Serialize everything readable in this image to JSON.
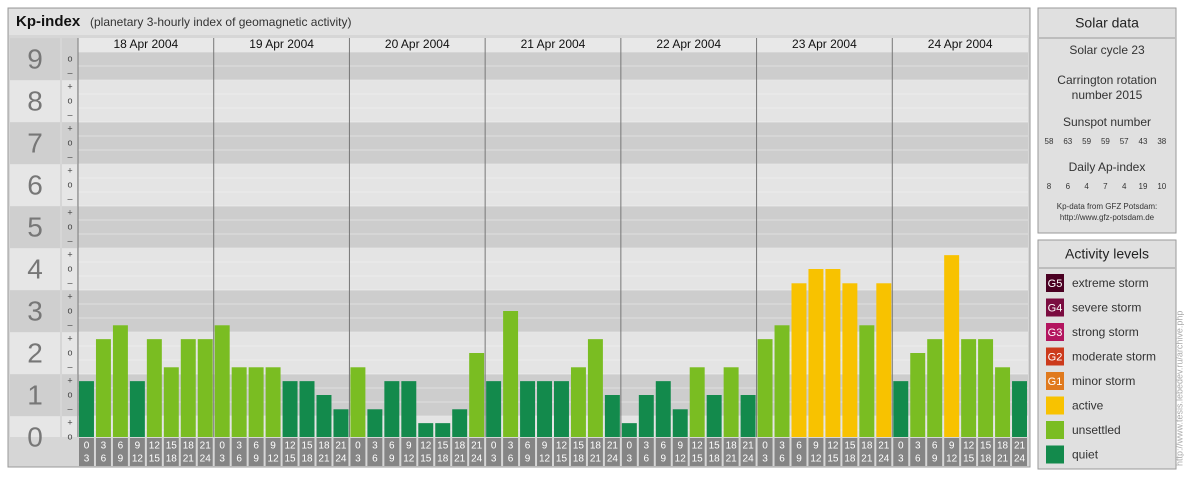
{
  "chart_data": {
    "type": "bar",
    "title": "Kp-index",
    "subtitle": "(planetary 3-hourly index of geomagnetic activity)",
    "categories": [
      "18 Apr 2004",
      "19 Apr 2004",
      "20 Apr 2004",
      "21 Apr 2004",
      "22 Apr 2004",
      "23 Apr 2004",
      "24 Apr 2004"
    ],
    "hours": [
      [
        0,
        3
      ],
      [
        3,
        6
      ],
      [
        6,
        9
      ],
      [
        9,
        12
      ],
      [
        12,
        15
      ],
      [
        15,
        18
      ],
      [
        18,
        21
      ],
      [
        21,
        24
      ]
    ],
    "values": [
      [
        1,
        2,
        2.33,
        1,
        2,
        1.33,
        2,
        2
      ],
      [
        2.33,
        1.33,
        1.33,
        1.33,
        1,
        1,
        0.67,
        0.33
      ],
      [
        1.33,
        0.33,
        1,
        1,
        0,
        0,
        0.33,
        1.67
      ],
      [
        1,
        2.67,
        1,
        1,
        1,
        1.33,
        2,
        0.67
      ],
      [
        0,
        0.67,
        1,
        0.33,
        1.33,
        0.67,
        1.33,
        0.67
      ],
      [
        2,
        2.33,
        3.33,
        3.67,
        3.67,
        3.33,
        2.33,
        3.33
      ],
      [
        1,
        1.67,
        2,
        4,
        2,
        2,
        1.33,
        1
      ]
    ],
    "colors": [
      [
        "#138a4c",
        "#7abd22",
        "#7abd22",
        "#138a4c",
        "#7abd22",
        "#7abd22",
        "#7abd22",
        "#7abd22"
      ],
      [
        "#7abd22",
        "#7abd22",
        "#7abd22",
        "#7abd22",
        "#138a4c",
        "#138a4c",
        "#138a4c",
        "#138a4c"
      ],
      [
        "#7abd22",
        "#138a4c",
        "#138a4c",
        "#138a4c",
        "#138a4c",
        "#138a4c",
        "#138a4c",
        "#7abd22"
      ],
      [
        "#138a4c",
        "#7abd22",
        "#138a4c",
        "#138a4c",
        "#138a4c",
        "#7abd22",
        "#7abd22",
        "#138a4c"
      ],
      [
        "#138a4c",
        "#138a4c",
        "#138a4c",
        "#138a4c",
        "#7abd22",
        "#138a4c",
        "#7abd22",
        "#138a4c"
      ],
      [
        "#7abd22",
        "#7abd22",
        "#f8c200",
        "#f8c200",
        "#f8c200",
        "#f8c200",
        "#7abd22",
        "#f8c200"
      ],
      [
        "#138a4c",
        "#7abd22",
        "#7abd22",
        "#f8c200",
        "#7abd22",
        "#7abd22",
        "#7abd22",
        "#138a4c"
      ]
    ],
    "ylim": [
      -0.33,
      9.17
    ],
    "yticks": [
      0,
      1,
      2,
      3,
      4,
      5,
      6,
      7,
      8,
      9
    ],
    "yticks_minor": [
      {
        "value": 0,
        "label": "o"
      },
      {
        "value": 0.33,
        "label": "+"
      },
      {
        "value": 0.67,
        "label": "–"
      },
      {
        "value": 1,
        "label": "o"
      },
      {
        "value": 1.33,
        "label": "+"
      },
      {
        "value": 1.67,
        "label": "–"
      },
      {
        "value": 2,
        "label": "o"
      },
      {
        "value": 2.33,
        "label": "+"
      },
      {
        "value": 2.67,
        "label": "–"
      },
      {
        "value": 3,
        "label": "o"
      },
      {
        "value": 3.33,
        "label": "+"
      },
      {
        "value": 3.67,
        "label": "–"
      },
      {
        "value": 4,
        "label": "o"
      },
      {
        "value": 4.33,
        "label": "+"
      },
      {
        "value": 4.67,
        "label": "–"
      },
      {
        "value": 5,
        "label": "o"
      },
      {
        "value": 5.33,
        "label": "+"
      },
      {
        "value": 5.67,
        "label": "–"
      },
      {
        "value": 6,
        "label": "o"
      },
      {
        "value": 6.33,
        "label": "+"
      },
      {
        "value": 6.67,
        "label": "–"
      },
      {
        "value": 7,
        "label": "o"
      },
      {
        "value": 7.33,
        "label": "+"
      },
      {
        "value": 7.67,
        "label": "–"
      },
      {
        "value": 8,
        "label": "o"
      },
      {
        "value": 8.33,
        "label": "+"
      },
      {
        "value": 8.67,
        "label": "–"
      },
      {
        "value": 9,
        "label": "o"
      }
    ]
  },
  "solar_data": {
    "title": "Solar data",
    "cycle": "Solar cycle 23",
    "carrington": [
      "Carrington rotation",
      "number 2015"
    ],
    "sunspot_title": "Sunspot number",
    "sunspots": [
      58,
      63,
      59,
      59,
      57,
      43,
      38
    ],
    "ap_title": "Daily Ap-index",
    "ap": [
      8,
      6,
      4,
      7,
      4,
      19,
      10
    ],
    "source": [
      "Kp-data from GFZ Potsdam:",
      "http://www.gfz-potsdam.de"
    ]
  },
  "activity_levels": {
    "title": "Activity levels",
    "items": [
      {
        "code": "G5",
        "label": "extreme storm",
        "color": "#4a0022"
      },
      {
        "code": "G4",
        "label": "severe storm",
        "color": "#7a0c40"
      },
      {
        "code": "G3",
        "label": "strong storm",
        "color": "#b3155f"
      },
      {
        "code": "G2",
        "label": "moderate storm",
        "color": "#cc3a1c"
      },
      {
        "code": "G1",
        "label": "minor storm",
        "color": "#e07a1e"
      },
      {
        "label": "active",
        "color": "#f8c200"
      },
      {
        "label": "unsettled",
        "color": "#7abd22"
      },
      {
        "label": "quiet",
        "color": "#138a4c"
      }
    ]
  },
  "credit": "http://www.tesis.lebedev.ru/archive.php"
}
